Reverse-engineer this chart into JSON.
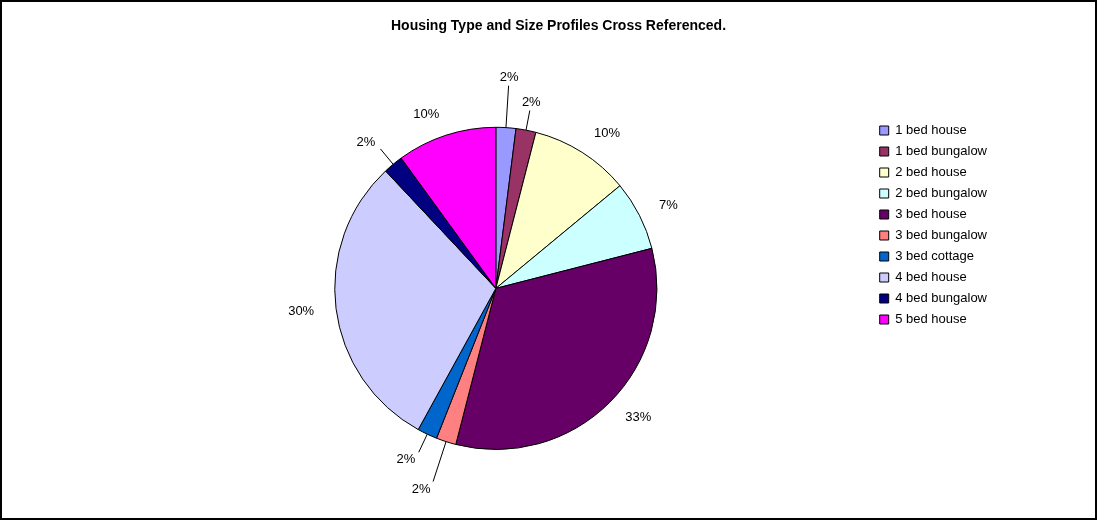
{
  "chart_data": {
    "type": "pie",
    "title": "Housing Type and Size Profiles Cross Referenced.",
    "categories": [
      "1 bed house",
      "1 bed bungalow",
      "2 bed house",
      "2 bed bungalow",
      "3 bed house",
      "3 bed bungalow",
      "3 bed cottage",
      "4 bed house",
      "4 bed bungalow",
      "5 bed house"
    ],
    "values": [
      2,
      2,
      10,
      7,
      33,
      2,
      2,
      30,
      2,
      10
    ],
    "value_labels": [
      "2%",
      "2%",
      "10%",
      "7%",
      "33%",
      "2%",
      "2%",
      "30%",
      "2%",
      "10%"
    ],
    "colors": [
      "#9999ff",
      "#993366",
      "#ffffcc",
      "#ccffff",
      "#660066",
      "#ff8080",
      "#0066cc",
      "#ccccff",
      "#000080",
      "#ff00ff"
    ],
    "legend": "right"
  }
}
